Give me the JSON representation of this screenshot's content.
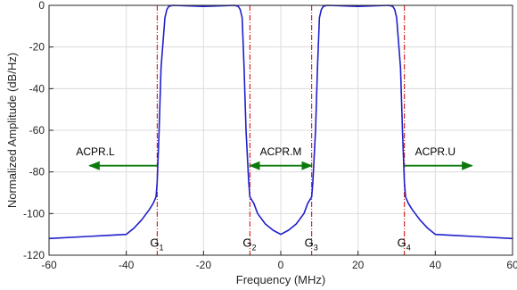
{
  "chart_data": {
    "type": "line",
    "xlabel": "Frequency (MHz)",
    "ylabel": "Normalized Amplitude (dB/Hz)",
    "xlim": [
      -60,
      60
    ],
    "ylim": [
      -120,
      0
    ],
    "xticks": [
      -60,
      -40,
      -20,
      0,
      20,
      40,
      60
    ],
    "yticks": [
      0,
      -20,
      -40,
      -60,
      -80,
      -100,
      -120
    ],
    "xtick_labels": [
      "-60",
      "-40",
      "-20",
      "0",
      "20",
      "40",
      "60"
    ],
    "ytick_labels": [
      "0",
      "-20",
      "-40",
      "-60",
      "-80",
      "-100",
      "-120"
    ],
    "grid": true,
    "series": [
      {
        "color": "#1f1fcc",
        "x": [
          -60,
          -50,
          -45,
          -40,
          -38,
          -36,
          -34,
          -33,
          -32.3,
          -32,
          -31.5,
          -31,
          -30,
          -29.5,
          -29,
          -28,
          -20,
          -12,
          -11,
          -10.5,
          -10,
          -9.5,
          -9,
          -8.3,
          -8,
          -7,
          -6,
          -4,
          -2,
          0,
          2,
          4,
          6,
          7,
          8,
          8.3,
          9,
          9.5,
          10,
          10.5,
          11,
          12,
          20,
          28,
          29,
          29.5,
          30,
          31,
          31.5,
          32,
          32.3,
          33,
          34,
          36,
          38,
          40,
          45,
          50,
          60
        ],
        "y": [
          -112,
          -111,
          -110.5,
          -110,
          -107,
          -103,
          -98,
          -95,
          -92,
          -85,
          -60,
          -30,
          -6,
          -2,
          -0.5,
          0,
          -0.5,
          0,
          -0.5,
          -2,
          -6,
          -30,
          -60,
          -85,
          -92,
          -95,
          -100,
          -105,
          -108,
          -110,
          -108,
          -105,
          -100,
          -95,
          -92,
          -85,
          -60,
          -30,
          -6,
          -2,
          -0.5,
          0,
          -0.5,
          0,
          -0.5,
          -2,
          -6,
          -30,
          -60,
          -85,
          -92,
          -95,
          -98,
          -103,
          -107,
          -110,
          -110.5,
          -111,
          -112
        ]
      }
    ],
    "markers": [
      {
        "label": "G",
        "sub": "1",
        "x": -32,
        "color": "#cc0000"
      },
      {
        "label": "G",
        "sub": "2",
        "x": -8,
        "color": "#cc0000"
      },
      {
        "label": "G",
        "sub": "3",
        "x": 8,
        "color": "#cc0000"
      },
      {
        "label": "G",
        "sub": "4",
        "x": 32,
        "color": "#cc0000"
      }
    ],
    "annotations": [
      {
        "text": "ACPR.L",
        "text_x": -48,
        "text_y": -72,
        "arrow": {
          "from_x": -32,
          "to_x": -49.5,
          "y": -77,
          "heads": "end"
        }
      },
      {
        "text": "ACPR.M",
        "text_x": 0,
        "text_y": -72,
        "arrow": {
          "from_x": -8,
          "to_x": 8,
          "y": -77,
          "heads": "both"
        }
      },
      {
        "text": "ACPR.U",
        "text_x": 40,
        "text_y": -72,
        "arrow": {
          "from_x": 32,
          "to_x": 49.5,
          "y": -77,
          "heads": "end"
        }
      }
    ],
    "colors": {
      "line": "#1f1fcc",
      "arrow": "#0a7a0a",
      "marker": "#cc0000",
      "grid": "#dcdcdc",
      "axis": "#262626"
    }
  }
}
